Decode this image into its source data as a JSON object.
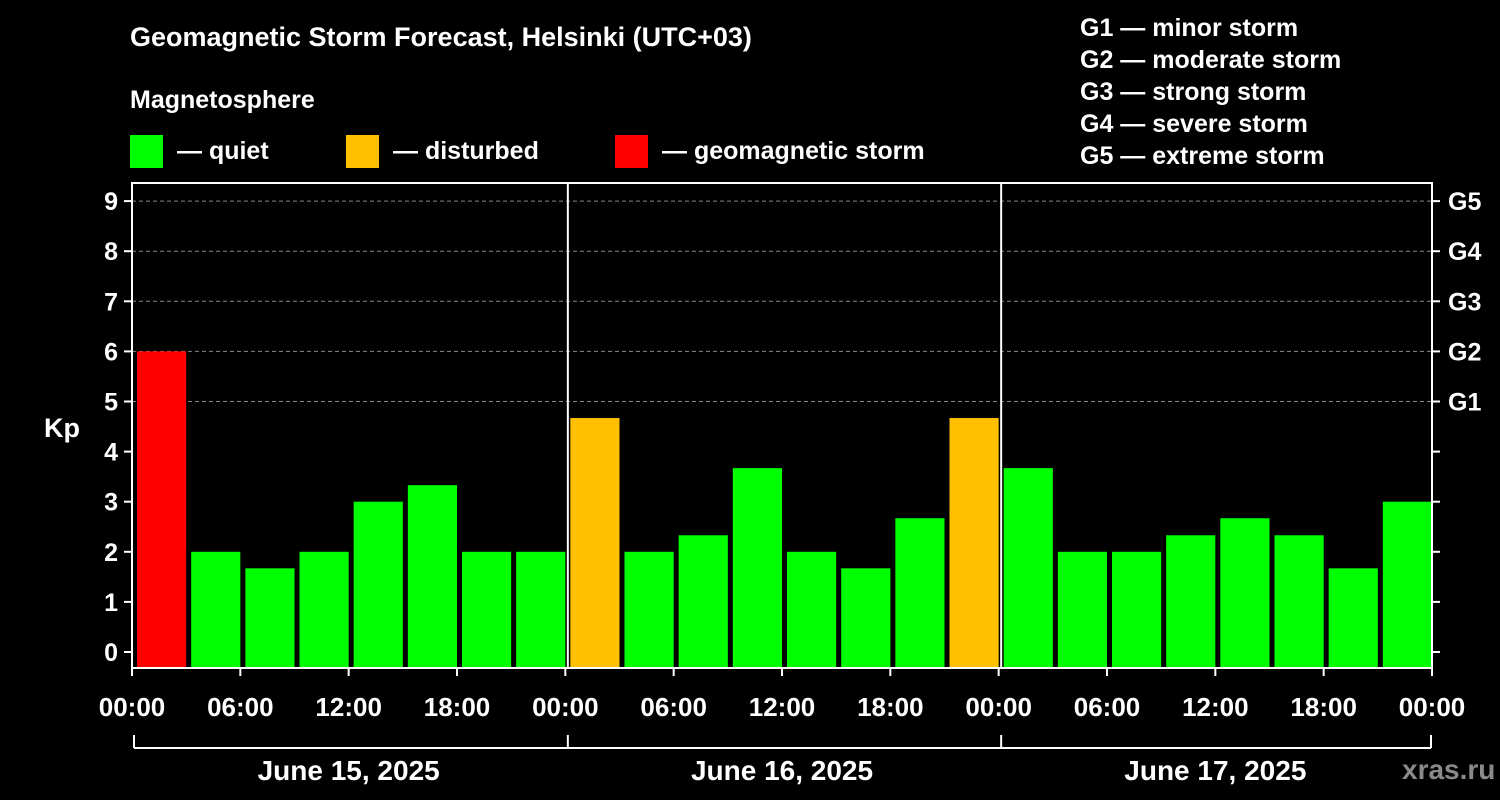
{
  "chart_data": {
    "type": "bar",
    "title": "Geomagnetic Storm Forecast, Helsinki (UTC+03)",
    "ylabel": "Kp",
    "ylim": [
      0,
      9
    ],
    "y_ticks": [
      "0",
      "1",
      "2",
      "3",
      "4",
      "5",
      "6",
      "7",
      "8",
      "9"
    ],
    "right_axis_labels": [
      {
        "kp": 5,
        "label": "G1"
      },
      {
        "kp": 6,
        "label": "G2"
      },
      {
        "kp": 7,
        "label": "G3"
      },
      {
        "kp": 8,
        "label": "G4"
      },
      {
        "kp": 9,
        "label": "G5"
      }
    ],
    "x_tick_labels": [
      "00:00",
      "06:00",
      "12:00",
      "18:00",
      "00:00",
      "06:00",
      "12:00",
      "18:00",
      "00:00",
      "06:00",
      "12:00",
      "18:00",
      "00:00"
    ],
    "days": [
      "June 15, 2025",
      "June 16, 2025",
      "June 17, 2025"
    ],
    "interval_hours": 3,
    "values": [
      6.0,
      2.0,
      1.67,
      2.0,
      3.0,
      3.33,
      2.0,
      2.0,
      4.67,
      2.0,
      2.33,
      3.67,
      2.0,
      1.67,
      2.67,
      4.67,
      3.67,
      2.0,
      2.0,
      2.33,
      2.67,
      2.33,
      1.67,
      3.0
    ],
    "grid": "dashed horizontal at Kp 5-9",
    "colors": {
      "quiet": "#00ff00",
      "disturbed": "#ffc000",
      "storm": "#ff0000"
    }
  },
  "magnetosphere": {
    "heading": "Magnetosphere",
    "legend": [
      {
        "label": "— quiet",
        "color": "#00ff00"
      },
      {
        "label": "— disturbed",
        "color": "#ffc000"
      },
      {
        "label": "— geomagnetic storm",
        "color": "#ff0000"
      }
    ]
  },
  "g_scale": [
    "G1 — minor storm",
    "G2 — moderate storm",
    "G3 — strong storm",
    "G4 — severe storm",
    "G5 — extreme storm"
  ],
  "watermark": "xras.ru"
}
